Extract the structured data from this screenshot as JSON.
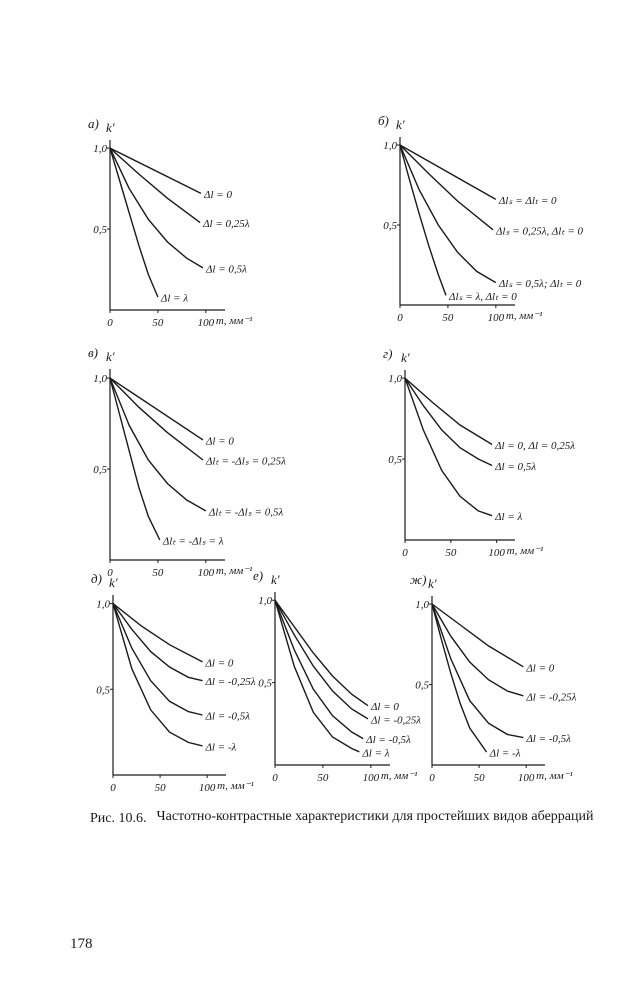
{
  "chart_data": [
    {
      "type": "line",
      "panel": "а)",
      "ylabel": "k′",
      "xlabel": "m, мм⁻¹",
      "color": "#1a1a1a",
      "xlim": [
        0,
        120
      ],
      "ylim": [
        0,
        1.05
      ],
      "xticks": [
        0,
        50,
        100
      ],
      "yticks": [
        {
          "value": 0.5,
          "label": "0,5"
        },
        {
          "value": 1,
          "label": "1,0"
        }
      ],
      "series": [
        {
          "name": "Δl = 0",
          "x": [
            0,
            95
          ],
          "values": [
            1,
            0.72
          ]
        },
        {
          "name": "Δl = 0,25λ",
          "x": [
            0,
            30,
            60,
            94
          ],
          "values": [
            1,
            0.84,
            0.69,
            0.54
          ]
        },
        {
          "name": "Δl = 0,5λ",
          "x": [
            0,
            20,
            40,
            60,
            80,
            97
          ],
          "values": [
            1,
            0.75,
            0.56,
            0.42,
            0.32,
            0.26
          ]
        },
        {
          "name": "Δl = λ",
          "x": [
            0,
            10,
            20,
            30,
            40,
            50
          ],
          "values": [
            1,
            0.8,
            0.6,
            0.4,
            0.22,
            0.08
          ]
        }
      ]
    },
    {
      "type": "line",
      "panel": "б)",
      "ylabel": "k′",
      "xlabel": "m, мм⁻¹",
      "color": "#1a1a1a",
      "xlim": [
        0,
        120
      ],
      "ylim": [
        0,
        1.05
      ],
      "xticks": [
        0,
        50,
        100
      ],
      "yticks": [
        {
          "value": 0.5,
          "label": "0,5"
        },
        {
          "value": 1,
          "label": "1,0"
        }
      ],
      "series": [
        {
          "name": "Δlₛ = Δlₜ = 0",
          "x": [
            0,
            100
          ],
          "values": [
            1,
            0.66
          ]
        },
        {
          "name": "Δlₛ = 0,25λ, Δlₜ = 0",
          "x": [
            0,
            30,
            60,
            97
          ],
          "values": [
            1,
            0.82,
            0.65,
            0.47
          ]
        },
        {
          "name": "Δlₛ = 0,5λ; Δlₜ = 0",
          "x": [
            0,
            20,
            40,
            60,
            80,
            100
          ],
          "values": [
            1,
            0.72,
            0.5,
            0.33,
            0.21,
            0.14
          ]
        },
        {
          "name": "Δlₛ = λ, Δlₜ = 0",
          "x": [
            0,
            10,
            20,
            30,
            40,
            48
          ],
          "values": [
            1,
            0.78,
            0.57,
            0.37,
            0.19,
            0.06
          ]
        }
      ]
    },
    {
      "type": "line",
      "panel": "в)",
      "ylabel": "k′",
      "xlabel": "m, мм⁻¹",
      "color": "#1a1a1a",
      "xlim": [
        0,
        120
      ],
      "ylim": [
        0,
        1.05
      ],
      "xticks": [
        0,
        50,
        100
      ],
      "yticks": [
        {
          "value": 0.5,
          "label": "0,5"
        },
        {
          "value": 1,
          "label": "1,0"
        }
      ],
      "series": [
        {
          "name": "Δl = 0",
          "x": [
            0,
            97
          ],
          "values": [
            1,
            0.66
          ]
        },
        {
          "name": "Δlₜ = -Δlₛ = 0,25λ",
          "x": [
            0,
            30,
            60,
            97
          ],
          "values": [
            1,
            0.84,
            0.7,
            0.55
          ]
        },
        {
          "name": "Δlₜ = -Δlₛ = 0,5λ",
          "x": [
            0,
            20,
            40,
            60,
            80,
            100
          ],
          "values": [
            1,
            0.74,
            0.55,
            0.42,
            0.33,
            0.27
          ]
        },
        {
          "name": "Δlₜ = -Δlₛ = λ",
          "x": [
            0,
            10,
            20,
            30,
            40,
            52
          ],
          "values": [
            1,
            0.8,
            0.6,
            0.4,
            0.24,
            0.11
          ]
        }
      ]
    },
    {
      "type": "line",
      "panel": "г)",
      "ylabel": "k′",
      "xlabel": "m, мм⁻¹",
      "color": "#1a1a1a",
      "xlim": [
        0,
        120
      ],
      "ylim": [
        0,
        1.05
      ],
      "xticks": [
        0,
        50,
        100
      ],
      "yticks": [
        {
          "value": 0.5,
          "label": "0,5"
        },
        {
          "value": 1,
          "label": "1,0"
        }
      ],
      "series": [
        {
          "name": "Δl = 0, Δl = 0,25λ",
          "x": [
            0,
            30,
            60,
            95
          ],
          "values": [
            1,
            0.85,
            0.71,
            0.59
          ]
        },
        {
          "name": "Δl = 0,5λ",
          "x": [
            0,
            20,
            40,
            60,
            80,
            95
          ],
          "values": [
            1,
            0.83,
            0.68,
            0.57,
            0.5,
            0.46
          ]
        },
        {
          "name": "Δl = λ",
          "x": [
            0,
            20,
            40,
            60,
            80,
            95
          ],
          "values": [
            1,
            0.68,
            0.43,
            0.27,
            0.18,
            0.15
          ]
        }
      ]
    },
    {
      "type": "line",
      "panel": "д)",
      "ylabel": "k′",
      "xlabel": "m, мм⁻¹",
      "color": "#1a1a1a",
      "xlim": [
        0,
        120
      ],
      "ylim": [
        0,
        1.05
      ],
      "xticks": [
        0,
        50,
        100
      ],
      "yticks": [
        {
          "value": 0.5,
          "label": "0,5"
        },
        {
          "value": 1,
          "label": "1,0"
        }
      ],
      "series": [
        {
          "name": "Δl = 0",
          "x": [
            0,
            30,
            60,
            95
          ],
          "values": [
            1,
            0.87,
            0.76,
            0.66
          ]
        },
        {
          "name": "Δl = -0,25λ",
          "x": [
            0,
            20,
            40,
            60,
            80,
            95
          ],
          "values": [
            1,
            0.85,
            0.72,
            0.63,
            0.57,
            0.55
          ]
        },
        {
          "name": "Δl = -0,5λ",
          "x": [
            0,
            20,
            40,
            60,
            80,
            95
          ],
          "values": [
            1,
            0.74,
            0.55,
            0.43,
            0.37,
            0.35
          ]
        },
        {
          "name": "Δl = -λ",
          "x": [
            0,
            20,
            40,
            60,
            80,
            95
          ],
          "values": [
            1,
            0.62,
            0.38,
            0.25,
            0.19,
            0.17
          ]
        }
      ]
    },
    {
      "type": "line",
      "panel": "е)",
      "ylabel": "k′",
      "xlabel": "m, мм⁻¹",
      "color": "#1a1a1a",
      "xlim": [
        0,
        120
      ],
      "ylim": [
        0,
        1.05
      ],
      "xticks": [
        0,
        50,
        100
      ],
      "yticks": [
        {
          "value": 0.5,
          "label": "0,5"
        },
        {
          "value": 1,
          "label": "1,0"
        }
      ],
      "series": [
        {
          "name": "Δl = 0",
          "x": [
            0,
            20,
            40,
            60,
            80,
            97
          ],
          "values": [
            1,
            0.84,
            0.68,
            0.54,
            0.43,
            0.36
          ]
        },
        {
          "name": "Δl = -0,25λ",
          "x": [
            0,
            20,
            40,
            60,
            80,
            97
          ],
          "values": [
            1,
            0.79,
            0.6,
            0.45,
            0.34,
            0.28
          ]
        },
        {
          "name": "Δl = -0,5λ",
          "x": [
            0,
            20,
            40,
            60,
            80,
            92
          ],
          "values": [
            1,
            0.7,
            0.46,
            0.3,
            0.2,
            0.16
          ]
        },
        {
          "name": "Δl = λ",
          "x": [
            0,
            20,
            40,
            60,
            80,
            88
          ],
          "values": [
            1,
            0.6,
            0.32,
            0.17,
            0.1,
            0.08
          ]
        }
      ]
    },
    {
      "type": "line",
      "panel": "ж)",
      "ylabel": "k′",
      "xlabel": "m, мм⁻¹",
      "color": "#1a1a1a",
      "xlim": [
        0,
        120
      ],
      "ylim": [
        0,
        1.05
      ],
      "xticks": [
        0,
        50,
        100
      ],
      "yticks": [
        {
          "value": 0.5,
          "label": "0,5"
        },
        {
          "value": 1,
          "label": "1,0"
        }
      ],
      "series": [
        {
          "name": "Δl = 0",
          "x": [
            0,
            30,
            60,
            97
          ],
          "values": [
            1,
            0.87,
            0.74,
            0.61
          ]
        },
        {
          "name": "Δl = -0,25λ",
          "x": [
            0,
            20,
            40,
            60,
            80,
            97
          ],
          "values": [
            1,
            0.8,
            0.64,
            0.53,
            0.46,
            0.43
          ]
        },
        {
          "name": "Δl = -0,5λ",
          "x": [
            0,
            20,
            40,
            60,
            80,
            97
          ],
          "values": [
            1,
            0.66,
            0.4,
            0.26,
            0.19,
            0.17
          ]
        },
        {
          "name": "Δl = -λ",
          "x": [
            0,
            10,
            20,
            30,
            40,
            58
          ],
          "values": [
            1,
            0.78,
            0.57,
            0.38,
            0.23,
            0.08
          ]
        }
      ]
    }
  ],
  "caption": {
    "number": "Рис. 10.6.",
    "text": "Частотно-контрастные характеристики для простейших видов аберраций"
  },
  "page_number": "178"
}
